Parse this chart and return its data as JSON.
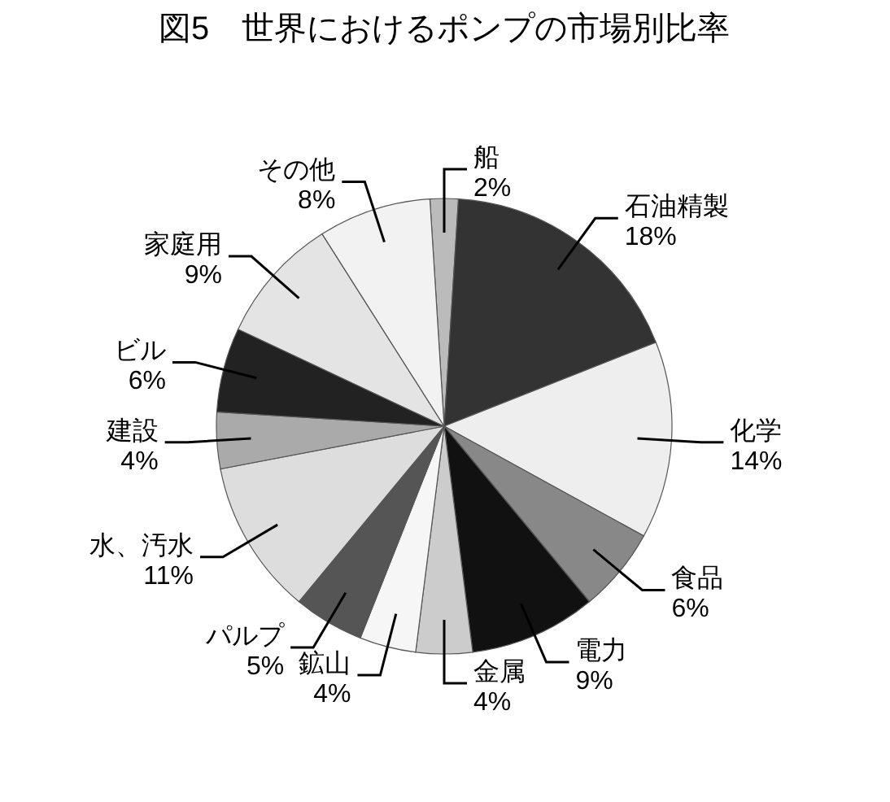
{
  "chart_data": {
    "type": "pie",
    "title": "図5　世界におけるポンプの市場別比率",
    "categories": [
      "船",
      "石油精製",
      "化学",
      "食品",
      "電力",
      "金属",
      "鉱山",
      "パルプ",
      "水、汚水",
      "建設",
      "ビル",
      "家庭用",
      "その他"
    ],
    "values": [
      2,
      18,
      14,
      6,
      9,
      4,
      4,
      5,
      11,
      4,
      6,
      9,
      8
    ],
    "value_labels": [
      "2%",
      "18%",
      "14%",
      "6%",
      "9%",
      "4%",
      "4%",
      "5%",
      "11%",
      "4%",
      "6%",
      "9%",
      "8%"
    ],
    "colors": [
      "#bbbbbb",
      "#333333",
      "#eeeeee",
      "#888888",
      "#111111",
      "#cccccc",
      "#f6f6f6",
      "#555555",
      "#dddddd",
      "#aaaaaa",
      "#222222",
      "#e4e4e4",
      "#f2f2f2"
    ]
  }
}
